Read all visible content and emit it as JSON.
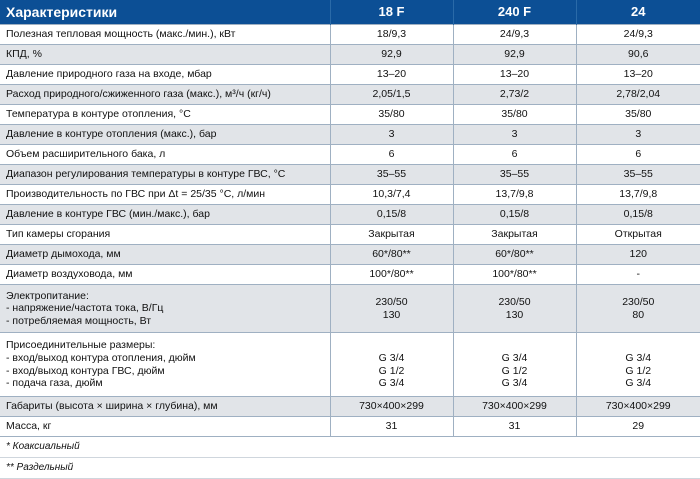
{
  "header": {
    "param": "Характеристики",
    "models": [
      "18 F",
      "240 F",
      "24"
    ]
  },
  "rows": [
    {
      "label": "Полезная тепловая мощность (макс./мин.), кВт",
      "values": [
        "18/9,3",
        "24/9,3",
        "24/9,3"
      ]
    },
    {
      "label": "КПД, %",
      "values": [
        "92,9",
        "92,9",
        "90,6"
      ]
    },
    {
      "label": "Давление природного газа на входе, мбар",
      "values": [
        "13–20",
        "13–20",
        "13–20"
      ]
    },
    {
      "label": "Расход природного/сжиженного газа (макс.), м³/ч (кг/ч)",
      "values": [
        "2,05/1,5",
        "2,73/2",
        "2,78/2,04"
      ]
    },
    {
      "label": "Температура в контуре отопления, °С",
      "values": [
        "35/80",
        "35/80",
        "35/80"
      ]
    },
    {
      "label": "Давление в контуре отопления (макс.), бар",
      "values": [
        "3",
        "3",
        "3"
      ]
    },
    {
      "label": "Объем расширительного бака, л",
      "values": [
        "6",
        "6",
        "6"
      ]
    },
    {
      "label": "Диапазон регулирования температуры в контуре ГВС, °С",
      "values": [
        "35–55",
        "35–55",
        "35–55"
      ]
    },
    {
      "label": "Производительность по ГВС при Δt = 25/35 °С, л/мин",
      "values": [
        "10,3/7,4",
        "13,7/9,8",
        "13,7/9,8"
      ]
    },
    {
      "label": "Давление в контуре ГВС (мин./макс.), бар",
      "values": [
        "0,15/8",
        "0,15/8",
        "0,15/8"
      ]
    },
    {
      "label": "Тип камеры сгорания",
      "values": [
        "Закрытая",
        "Закрытая",
        "Открытая"
      ]
    },
    {
      "label": "Диаметр дымохода, мм",
      "values": [
        "60*/80**",
        "60*/80**",
        "120"
      ]
    },
    {
      "label": "Диаметр воздуховода, мм",
      "values": [
        "100*/80**",
        "100*/80**",
        "-"
      ]
    }
  ],
  "electric": {
    "lines": [
      "Электропитание:",
      "- напряжение/частота тока, В/Гц",
      "- потребляемая мощность, Вт"
    ],
    "values": [
      [
        "230/50",
        "130"
      ],
      [
        "230/50",
        "130"
      ],
      [
        "230/50",
        "80"
      ]
    ]
  },
  "connections": {
    "lines": [
      "Присоединительные размеры:",
      "- вход/выход контура отопления, дюйм",
      "- вход/выход контура ГВС, дюйм",
      "- подача газа, дюйм"
    ],
    "values": [
      [
        "G 3/4",
        "G 1/2",
        "G 3/4"
      ],
      [
        "G 3/4",
        "G 1/2",
        "G 3/4"
      ],
      [
        "G 3/4",
        "G 1/2",
        "G 3/4"
      ]
    ]
  },
  "tail_rows": [
    {
      "label": "Габариты (высота × ширина × глубина), мм",
      "values": [
        "730×400×299",
        "730×400×299",
        "730×400×299"
      ]
    },
    {
      "label": "Масса, кг",
      "values": [
        "31",
        "31",
        "29"
      ]
    }
  ],
  "footnotes": [
    "* Коаксиальный",
    "** Раздельный"
  ]
}
